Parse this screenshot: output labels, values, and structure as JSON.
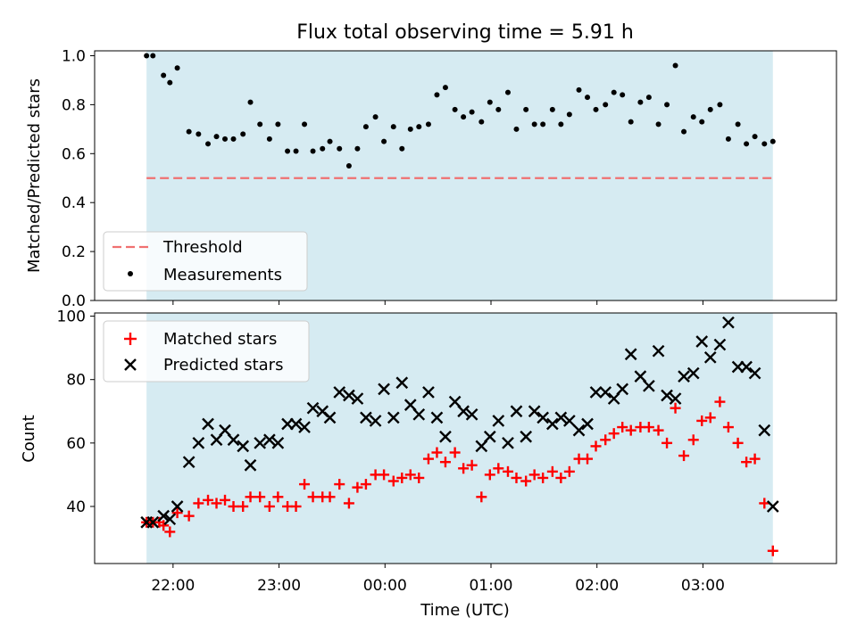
{
  "chart_data": [
    {
      "type": "scatter",
      "title": "Flux total observing time = 5.91 h",
      "ylabel": "Matched/Predicted stars",
      "xlabel": "",
      "ylim": [
        0,
        1.02
      ],
      "yticks": [
        "0.0",
        "0.2",
        "0.4",
        "0.6",
        "0.8",
        "1.0"
      ],
      "ytick_values": [
        0,
        0.2,
        0.4,
        0.6,
        0.8,
        1.0
      ],
      "shaded_span_hours": [
        21.75,
        27.66
      ],
      "threshold": 0.5,
      "legend_position": "lower-left",
      "series": [
        {
          "name": "Threshold",
          "kind": "hline",
          "color": "#f07070"
        },
        {
          "name": "Measurements",
          "color": "#000000",
          "x": [
            21.75,
            21.81,
            21.91,
            21.97,
            22.04,
            22.15,
            22.24,
            22.33,
            22.41,
            22.49,
            22.57,
            22.66,
            22.73,
            22.82,
            22.91,
            22.99,
            23.08,
            23.16,
            23.24,
            23.32,
            23.41,
            23.48,
            23.57,
            23.66,
            23.74,
            23.82,
            23.91,
            23.99,
            24.08,
            24.16,
            24.24,
            24.32,
            24.41,
            24.49,
            24.57,
            24.66,
            24.74,
            24.82,
            24.91,
            24.99,
            25.07,
            25.16,
            25.24,
            25.33,
            25.41,
            25.49,
            25.58,
            25.66,
            25.74,
            25.83,
            25.91,
            25.99,
            26.08,
            26.16,
            26.24,
            26.32,
            26.41,
            26.49,
            26.58,
            26.66,
            26.74,
            26.82,
            26.91,
            26.99,
            27.07,
            27.16,
            27.24,
            27.33,
            27.41,
            27.49,
            27.58,
            27.66
          ],
          "y": [
            1.0,
            1.0,
            0.92,
            0.89,
            0.95,
            0.69,
            0.68,
            0.64,
            0.67,
            0.66,
            0.66,
            0.68,
            0.81,
            0.72,
            0.66,
            0.72,
            0.61,
            0.61,
            0.72,
            0.61,
            0.62,
            0.65,
            0.62,
            0.55,
            0.62,
            0.71,
            0.75,
            0.65,
            0.71,
            0.62,
            0.7,
            0.71,
            0.72,
            0.84,
            0.87,
            0.78,
            0.75,
            0.77,
            0.73,
            0.81,
            0.78,
            0.85,
            0.7,
            0.78,
            0.72,
            0.72,
            0.78,
            0.72,
            0.76,
            0.86,
            0.83,
            0.78,
            0.8,
            0.85,
            0.84,
            0.73,
            0.81,
            0.83,
            0.72,
            0.8,
            0.96,
            0.69,
            0.75,
            0.73,
            0.78,
            0.8,
            0.66,
            0.72,
            0.64,
            0.67,
            0.64,
            0.65
          ]
        }
      ]
    },
    {
      "type": "scatter",
      "title": "",
      "ylabel": "Count",
      "xlabel": "Time (UTC)",
      "ylim": [
        22,
        101
      ],
      "yticks": [
        "40",
        "60",
        "80",
        "100"
      ],
      "ytick_values": [
        40,
        60,
        80,
        100
      ],
      "shaded_span_hours": [
        21.75,
        27.66
      ],
      "legend_position": "top-left",
      "series": [
        {
          "name": "Matched stars",
          "marker": "plus",
          "color": "#ff0000",
          "x": [
            21.75,
            21.81,
            21.87,
            21.91,
            21.97,
            22.04,
            22.15,
            22.24,
            22.33,
            22.41,
            22.49,
            22.57,
            22.66,
            22.73,
            22.82,
            22.91,
            22.99,
            23.08,
            23.16,
            23.24,
            23.32,
            23.41,
            23.48,
            23.57,
            23.66,
            23.74,
            23.82,
            23.91,
            23.99,
            24.08,
            24.16,
            24.24,
            24.32,
            24.41,
            24.49,
            24.57,
            24.66,
            24.74,
            24.82,
            24.91,
            24.99,
            25.07,
            25.16,
            25.24,
            25.33,
            25.41,
            25.49,
            25.58,
            25.66,
            25.74,
            25.83,
            25.91,
            25.99,
            26.08,
            26.16,
            26.24,
            26.32,
            26.41,
            26.49,
            26.58,
            26.66,
            26.74,
            26.82,
            26.91,
            26.99,
            27.07,
            27.16,
            27.24,
            27.33,
            27.41,
            27.49,
            27.58,
            27.66
          ],
          "y": [
            35,
            35,
            35,
            34,
            32,
            38,
            37,
            41,
            42,
            41,
            42,
            40,
            40,
            43,
            43,
            40,
            43,
            40,
            40,
            47,
            43,
            43,
            43,
            47,
            41,
            46,
            47,
            50,
            50,
            48,
            49,
            50,
            49,
            55,
            57,
            54,
            57,
            52,
            53,
            43,
            50,
            52,
            51,
            49,
            48,
            50,
            49,
            51,
            49,
            51,
            55,
            55,
            59,
            61,
            63,
            65,
            64,
            65,
            65,
            64,
            60,
            71,
            56,
            61,
            67,
            68,
            73,
            65,
            60,
            54,
            55,
            41,
            26
          ]
        },
        {
          "name": "Predicted stars",
          "marker": "x",
          "color": "#000000",
          "x": [
            21.75,
            21.81,
            21.91,
            21.97,
            22.04,
            22.15,
            22.24,
            22.33,
            22.41,
            22.49,
            22.57,
            22.66,
            22.73,
            22.82,
            22.91,
            22.99,
            23.08,
            23.16,
            23.24,
            23.32,
            23.41,
            23.48,
            23.57,
            23.66,
            23.74,
            23.82,
            23.91,
            23.99,
            24.08,
            24.16,
            24.24,
            24.32,
            24.41,
            24.49,
            24.57,
            24.66,
            24.74,
            24.82,
            24.91,
            24.99,
            25.07,
            25.16,
            25.24,
            25.33,
            25.41,
            25.49,
            25.58,
            25.66,
            25.74,
            25.83,
            25.91,
            25.99,
            26.08,
            26.16,
            26.24,
            26.32,
            26.41,
            26.49,
            26.58,
            26.66,
            26.74,
            26.82,
            26.91,
            26.99,
            27.07,
            27.16,
            27.24,
            27.33,
            27.41,
            27.49,
            27.58,
            27.66
          ],
          "y": [
            35,
            35,
            37,
            36,
            40,
            54,
            60,
            66,
            61,
            64,
            61,
            59,
            53,
            60,
            61,
            60,
            66,
            66,
            65,
            71,
            70,
            68,
            76,
            75,
            74,
            68,
            67,
            77,
            68,
            79,
            72,
            69,
            76,
            68,
            62,
            73,
            70,
            69,
            59,
            62,
            67,
            60,
            70,
            62,
            70,
            68,
            66,
            68,
            67,
            64,
            66,
            76,
            76,
            74,
            77,
            88,
            81,
            78,
            89,
            75,
            74,
            81,
            82,
            92,
            87,
            91,
            98,
            84,
            84,
            82,
            64,
            40
          ]
        }
      ],
      "xticks": [
        "22:00",
        "23:00",
        "00:00",
        "01:00",
        "02:00",
        "03:00"
      ],
      "xtick_values_hours": [
        22,
        23,
        24,
        25,
        26,
        27
      ]
    }
  ]
}
